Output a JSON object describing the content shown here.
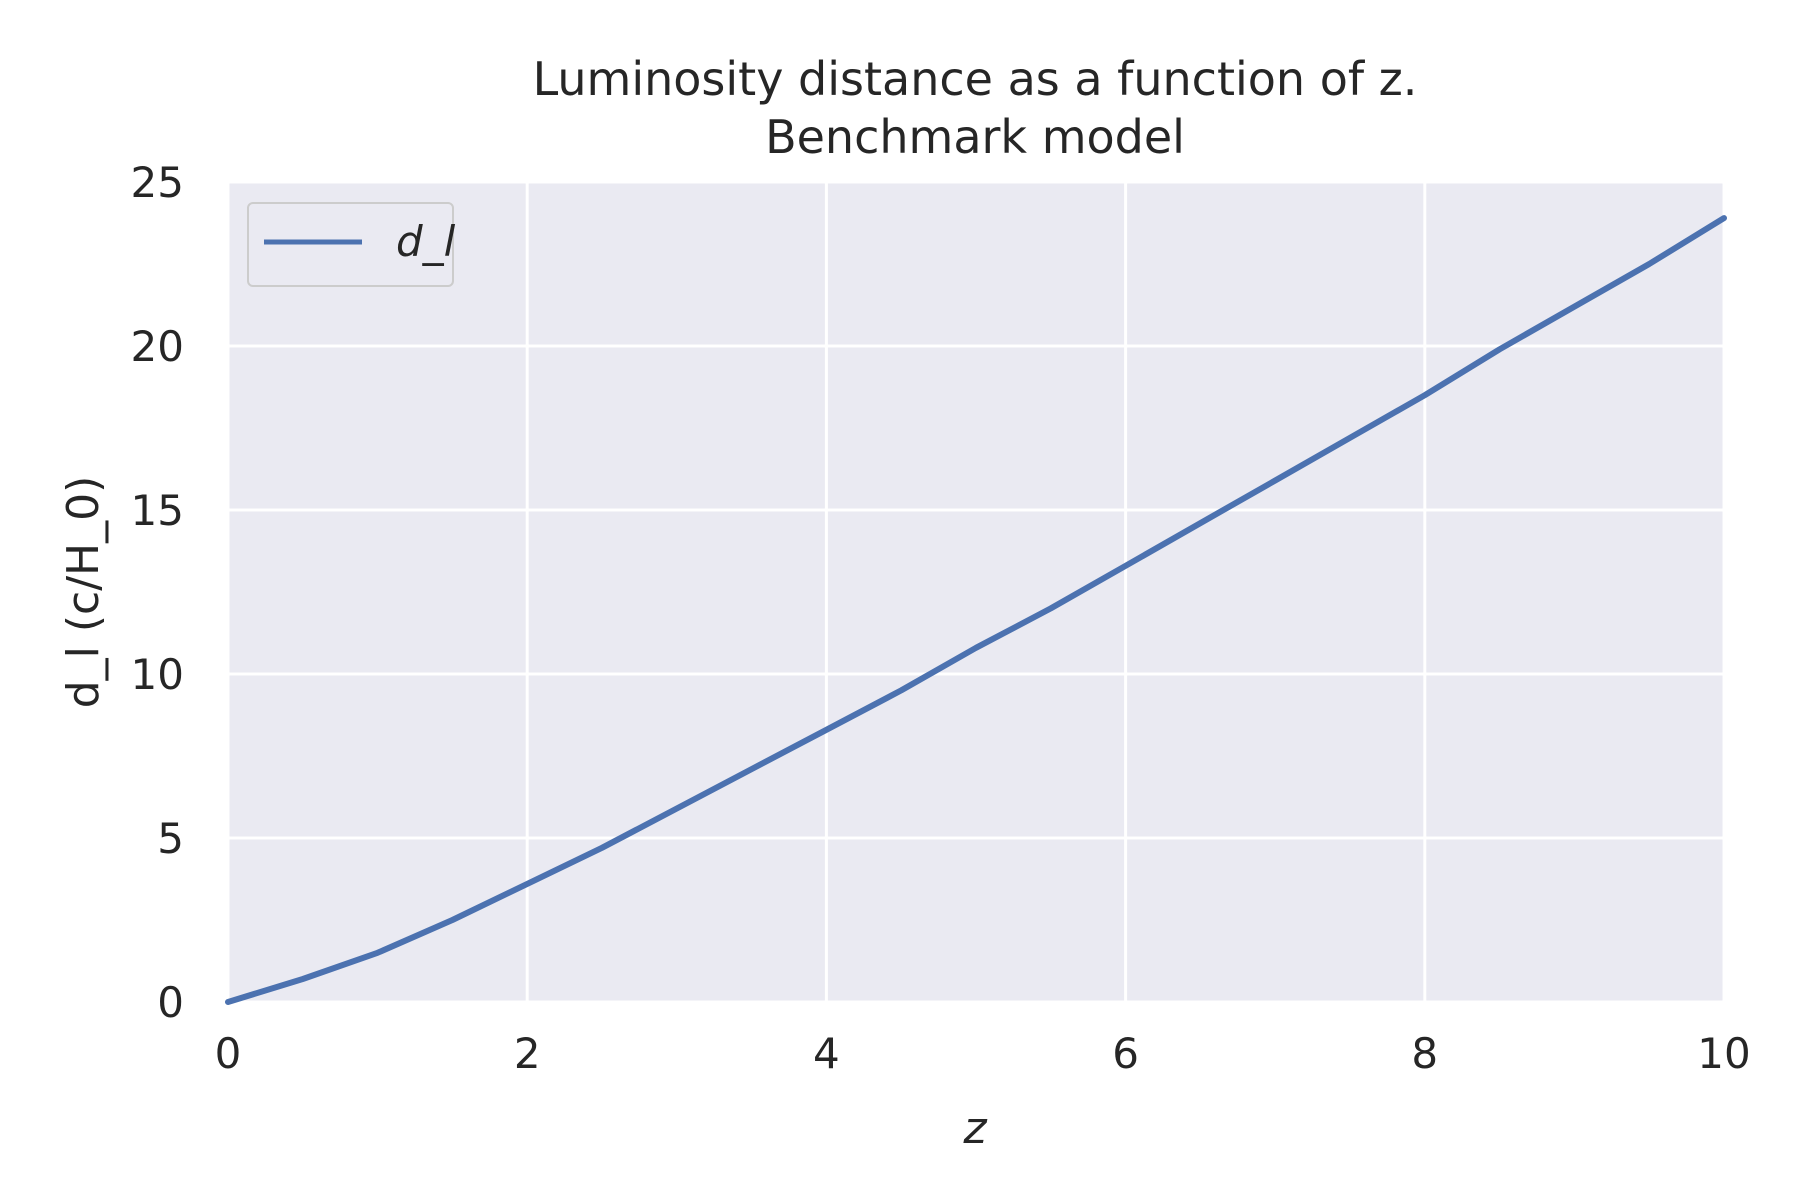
{
  "chart_data": {
    "type": "line",
    "title_line1": "Luminosity distance as a function of z.",
    "title_line2": "Benchmark model",
    "xlabel": "z",
    "ylabel": "d_l  (c/H_0)",
    "xlim": [
      0,
      10
    ],
    "ylim": [
      0,
      25
    ],
    "x_ticks": [
      0,
      2,
      4,
      6,
      8,
      10
    ],
    "y_ticks": [
      0,
      5,
      10,
      15,
      20,
      25
    ],
    "grid": true,
    "legend_position": "top-left",
    "background_color": "#EAEAF2",
    "series": [
      {
        "name": "d_l",
        "color": "#4C72B0",
        "x": [
          0,
          0.5,
          1,
          1.5,
          2,
          2.5,
          3,
          3.5,
          4,
          4.5,
          5,
          5.5,
          6,
          6.5,
          7,
          7.5,
          8,
          8.5,
          9,
          9.5,
          10
        ],
        "y": [
          0,
          0.7,
          1.5,
          2.5,
          3.6,
          4.7,
          5.9,
          7.1,
          8.3,
          9.5,
          10.8,
          12.0,
          13.3,
          14.6,
          15.9,
          17.2,
          18.5,
          19.9,
          21.2,
          22.5,
          23.9
        ]
      }
    ]
  }
}
